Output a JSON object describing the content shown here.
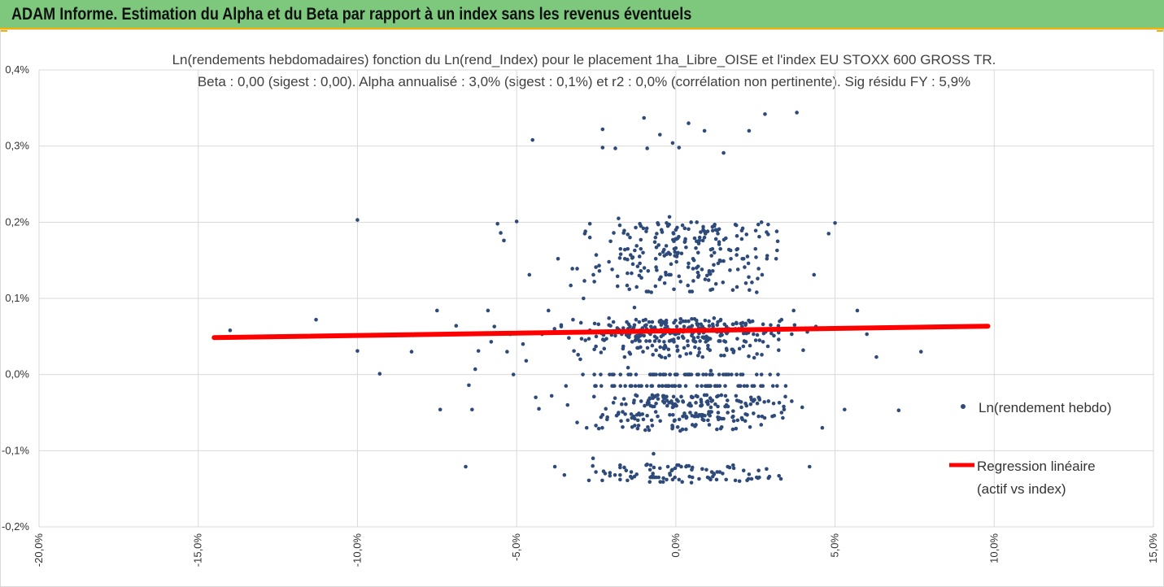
{
  "header": {
    "title": "ADAM Informe. Estimation du Alpha et du Beta par rapport à un index sans les revenus éventuels"
  },
  "colors": {
    "banner": "#7ec87e",
    "accent": "#f0b400",
    "points": "#2e4a7a",
    "regression": "#ff0000",
    "grid": "#d9d9d9"
  },
  "chart_data": {
    "type": "scatter",
    "title": "Ln(rendements hebdomadaires) fonction du Ln(rend_Index) pour le placement 1ha_Libre_OISE et l'index EU STOXX 600 GROSS TR.",
    "subtitle": "Beta : 0,00 (sigest : 0,00).  Alpha annualisé : 3,0% (sigest : 0,1%) et r2 : 0,0% (corrélation non pertinente). Sig résidu FY : 5,9%",
    "xlabel": "",
    "ylabel": "",
    "xlim": [
      -20,
      15
    ],
    "ylim": [
      -0.2,
      0.4
    ],
    "grid": true,
    "legend_position": "right",
    "x_tick_labels": [
      "-20,0%",
      "-15,0%",
      "-10,0%",
      "-5,0%",
      "0,0%",
      "5,0%",
      "10,0%",
      "15,0%"
    ],
    "y_tick_labels": [
      "-0,2%",
      "-0,1%",
      "0,0%",
      "0,1%",
      "0,2%",
      "0,3%",
      "0,4%"
    ],
    "series": [
      {
        "name": "Ln(rendement hebdo)",
        "kind": "scatter",
        "points": [
          [
            -14.4,
            0.049
          ],
          [
            -14.0,
            0.058
          ],
          [
            -11.3,
            0.072
          ],
          [
            -10.0,
            0.031
          ],
          [
            -10.0,
            0.203
          ],
          [
            -9.3,
            0.001
          ],
          [
            -8.3,
            0.03
          ],
          [
            -8.3,
            0.053
          ],
          [
            -7.5,
            0.084
          ],
          [
            -7.4,
            -0.046
          ],
          [
            -6.9,
            0.064
          ],
          [
            -6.6,
            -0.121
          ],
          [
            -6.5,
            -0.014
          ],
          [
            -6.4,
            -0.046
          ],
          [
            -6.3,
            0.007
          ],
          [
            -6.2,
            0.031
          ],
          [
            -5.9,
            0.084
          ],
          [
            -5.8,
            0.043
          ],
          [
            -5.7,
            0.063
          ],
          [
            -5.6,
            0.198
          ],
          [
            -5.5,
            0.186
          ],
          [
            -5.4,
            0.176
          ],
          [
            -5.3,
            0.03
          ],
          [
            -5.2,
            0.053
          ],
          [
            -5.1,
            0.0
          ],
          [
            -5.0,
            0.201
          ],
          [
            -4.8,
            0.04
          ],
          [
            -4.7,
            0.018
          ],
          [
            -4.6,
            0.131
          ],
          [
            -4.5,
            0.308
          ],
          [
            -4.4,
            -0.03
          ],
          [
            -4.3,
            -0.045
          ],
          [
            -4.2,
            0.053
          ],
          [
            -4.0,
            0.084
          ],
          [
            -3.9,
            -0.028
          ],
          [
            -3.8,
            -0.121
          ],
          [
            -3.7,
            0.152
          ],
          [
            -3.6,
            0.063
          ],
          [
            -3.5,
            -0.132
          ],
          [
            -3.4,
            -0.04
          ],
          [
            -3.3,
            0.117
          ],
          [
            -3.2,
            0.031
          ],
          [
            -3.1,
            -0.063
          ],
          [
            -3.0,
            0.02
          ],
          [
            -2.9,
            0.1
          ],
          [
            -2.8,
            -0.07
          ],
          [
            -2.7,
            0.18
          ],
          [
            -2.6,
            -0.11
          ],
          [
            -2.5,
            0.05
          ],
          [
            -2.4,
            0.136
          ],
          [
            -2.3,
            0.322
          ],
          [
            -2.3,
            0.298
          ],
          [
            -2.2,
            -0.045
          ],
          [
            -2.1,
            0.074
          ],
          [
            -2.0,
            -0.015
          ],
          [
            -1.9,
            0.297
          ],
          [
            -1.8,
            0.205
          ],
          [
            -1.7,
            0.053
          ],
          [
            -1.6,
            0.164
          ],
          [
            -1.5,
            0.009
          ],
          [
            -1.4,
            -0.128
          ],
          [
            -1.3,
            0.088
          ],
          [
            -1.2,
            0.142
          ],
          [
            -1.1,
            0.195
          ],
          [
            -1.0,
            0.337
          ],
          [
            -0.9,
            0.297
          ],
          [
            -0.8,
            0.053
          ],
          [
            -0.7,
            -0.104
          ],
          [
            -0.6,
            0.185
          ],
          [
            -0.5,
            0.315
          ],
          [
            -0.4,
            -0.035
          ],
          [
            -0.3,
            0.068
          ],
          [
            -0.2,
            0.207
          ],
          [
            -0.1,
            0.304
          ],
          [
            0.0,
            0.053
          ],
          [
            0.1,
            0.298
          ],
          [
            0.2,
            -0.141
          ],
          [
            0.3,
            0.178
          ],
          [
            0.4,
            0.33
          ],
          [
            0.5,
            -0.125
          ],
          [
            0.6,
            0.058
          ],
          [
            0.7,
            0.16
          ],
          [
            0.8,
            -0.036
          ],
          [
            0.9,
            0.32
          ],
          [
            1.0,
            0.188
          ],
          [
            1.1,
            0.005
          ],
          [
            1.2,
            0.074
          ],
          [
            1.3,
            -0.128
          ],
          [
            1.4,
            0.165
          ],
          [
            1.5,
            0.291
          ],
          [
            1.6,
            0.054
          ],
          [
            1.7,
            0.137
          ],
          [
            1.8,
            -0.048
          ],
          [
            1.9,
            0.196
          ],
          [
            2.0,
            -0.14
          ],
          [
            2.1,
            0.068
          ],
          [
            2.2,
            0.12
          ],
          [
            2.3,
            0.32
          ],
          [
            2.4,
            0.059
          ],
          [
            2.5,
            0.165
          ],
          [
            2.6,
            -0.126
          ],
          [
            2.7,
            0.026
          ],
          [
            2.8,
            0.342
          ],
          [
            2.9,
            0.197
          ],
          [
            3.0,
            0.054
          ],
          [
            3.2,
            0.175
          ],
          [
            3.4,
            -0.046
          ],
          [
            3.7,
            0.084
          ],
          [
            3.8,
            0.344
          ],
          [
            4.0,
            0.032
          ],
          [
            4.2,
            -0.121
          ],
          [
            4.4,
            0.063
          ],
          [
            4.6,
            -0.07
          ],
          [
            4.8,
            0.185
          ],
          [
            5.0,
            0.199
          ],
          [
            5.3,
            -0.046
          ],
          [
            5.7,
            0.084
          ],
          [
            6.0,
            0.053
          ],
          [
            6.3,
            0.023
          ],
          [
            7.0,
            -0.047
          ],
          [
            7.7,
            0.03
          ],
          [
            8.1,
            0.063
          ],
          [
            9.7,
            0.063
          ]
        ]
      },
      {
        "name": "Regression linéaire (actif vs index)",
        "kind": "line",
        "points": [
          [
            -14.5,
            0.0485
          ],
          [
            9.8,
            0.0635
          ]
        ]
      }
    ],
    "legend": [
      {
        "label": "Ln(rendement hebdo)"
      },
      {
        "label_line1": "Regression linéaire",
        "label_line2": "(actif vs index)"
      }
    ]
  }
}
